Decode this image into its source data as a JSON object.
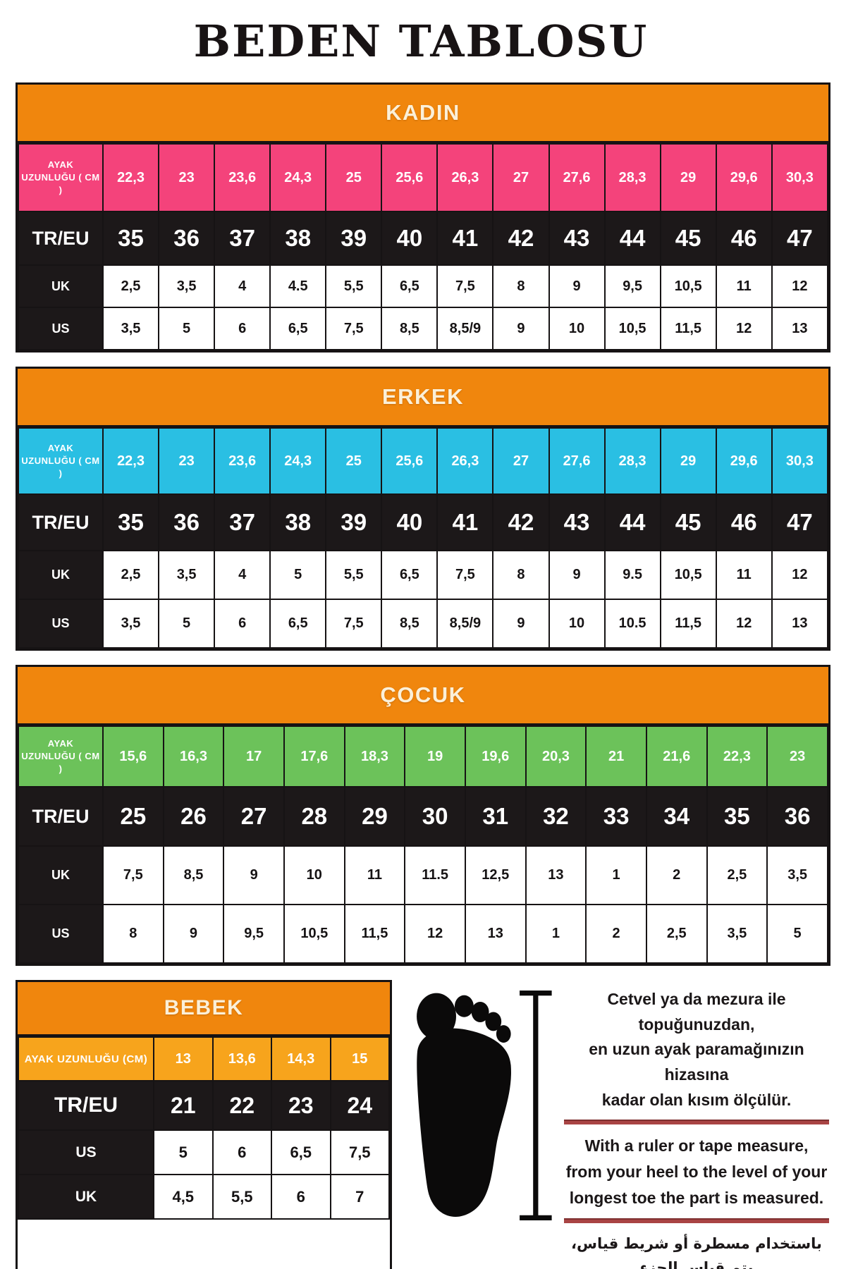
{
  "title": "BEDEN TABLOSU",
  "colors": {
    "orange": "#F0860D",
    "pink": "#F4437B",
    "blue": "#2ABFE3",
    "green": "#6CC25A",
    "amber": "#F7A41C",
    "black_row": "#1C1819",
    "header_text": "#FBF0D9",
    "underline_red": "#A94444"
  },
  "sections": [
    {
      "title": "KADIN",
      "accent": "pink",
      "foot_row": {
        "label": "AYAK UZUNLUĞU ( CM )",
        "values": [
          "22,3",
          "23",
          "23,6",
          "24,3",
          "25",
          "25,6",
          "26,3",
          "27",
          "27,6",
          "28,3",
          "29",
          "29,6",
          "30,3"
        ]
      },
      "size_row": {
        "label": "TR/EU",
        "values": [
          "35",
          "36",
          "37",
          "38",
          "39",
          "40",
          "41",
          "42",
          "43",
          "44",
          "45",
          "46",
          "47"
        ]
      },
      "rows": [
        {
          "label": "UK",
          "values": [
            "2,5",
            "3,5",
            "4",
            "4.5",
            "5,5",
            "6,5",
            "7,5",
            "8",
            "9",
            "9,5",
            "10,5",
            "11",
            "12"
          ]
        },
        {
          "label": "US",
          "values": [
            "3,5",
            "5",
            "6",
            "6,5",
            "7,5",
            "8,5",
            "8,5/9",
            "9",
            "10",
            "10,5",
            "11,5",
            "12",
            "13"
          ]
        }
      ]
    },
    {
      "title": "ERKEK",
      "accent": "blue",
      "foot_row": {
        "label": "AYAK UZUNLUĞU ( CM )",
        "values": [
          "22,3",
          "23",
          "23,6",
          "24,3",
          "25",
          "25,6",
          "26,3",
          "27",
          "27,6",
          "28,3",
          "29",
          "29,6",
          "30,3"
        ]
      },
      "size_row": {
        "label": "TR/EU",
        "values": [
          "35",
          "36",
          "37",
          "38",
          "39",
          "40",
          "41",
          "42",
          "43",
          "44",
          "45",
          "46",
          "47"
        ]
      },
      "rows": [
        {
          "label": "UK",
          "values": [
            "2,5",
            "3,5",
            "4",
            "5",
            "5,5",
            "6,5",
            "7,5",
            "8",
            "9",
            "9.5",
            "10,5",
            "11",
            "12"
          ]
        },
        {
          "label": "US",
          "values": [
            "3,5",
            "5",
            "6",
            "6,5",
            "7,5",
            "8,5",
            "8,5/9",
            "9",
            "10",
            "10.5",
            "11,5",
            "12",
            "13"
          ]
        }
      ]
    },
    {
      "title": "ÇOCUK",
      "accent": "green",
      "foot_row": {
        "label": "AYAK UZUNLUĞU ( CM )",
        "values": [
          "15,6",
          "16,3",
          "17",
          "17,6",
          "18,3",
          "19",
          "19,6",
          "20,3",
          "21",
          "21,6",
          "22,3",
          "23"
        ]
      },
      "size_row": {
        "label": "TR/EU",
        "values": [
          "25",
          "26",
          "27",
          "28",
          "29",
          "30",
          "31",
          "32",
          "33",
          "34",
          "35",
          "36"
        ]
      },
      "rows": [
        {
          "label": "UK",
          "values": [
            "7,5",
            "8,5",
            "9",
            "10",
            "11",
            "11.5",
            "12,5",
            "13",
            "1",
            "2",
            "2,5",
            "3,5"
          ]
        },
        {
          "label": "US",
          "values": [
            "8",
            "9",
            "9,5",
            "10,5",
            "11,5",
            "12",
            "13",
            "1",
            "2",
            "2,5",
            "3,5",
            "5"
          ]
        }
      ]
    },
    {
      "title": "BEBEK",
      "accent": "amber",
      "foot_row": {
        "label": "AYAK UZUNLUĞU (CM)",
        "values": [
          "13",
          "13,6",
          "14,3",
          "15"
        ]
      },
      "size_row": {
        "label": "TR/EU",
        "values": [
          "21",
          "22",
          "23",
          "24"
        ]
      },
      "rows": [
        {
          "label": "US",
          "values": [
            "5",
            "6",
            "6,5",
            "7,5"
          ]
        },
        {
          "label": "UK",
          "values": [
            "4,5",
            "5,5",
            "6",
            "7"
          ]
        }
      ]
    }
  ],
  "measure_note": {
    "turkish": "Cetvel ya da mezura ile topuğunuzdan,\nen uzun ayak paramağınızın hizasına\nkadar olan kısım ölçülür.",
    "english": "With a ruler or tape measure,\nfrom your heel to the level of your\nlongest toe the part is measured.",
    "arabic": "باستخدام مسطرة أو شريط قياس، يتم قياس الجزء\nمن كعبك إلى مستوى أطول إصبع قدمك"
  }
}
